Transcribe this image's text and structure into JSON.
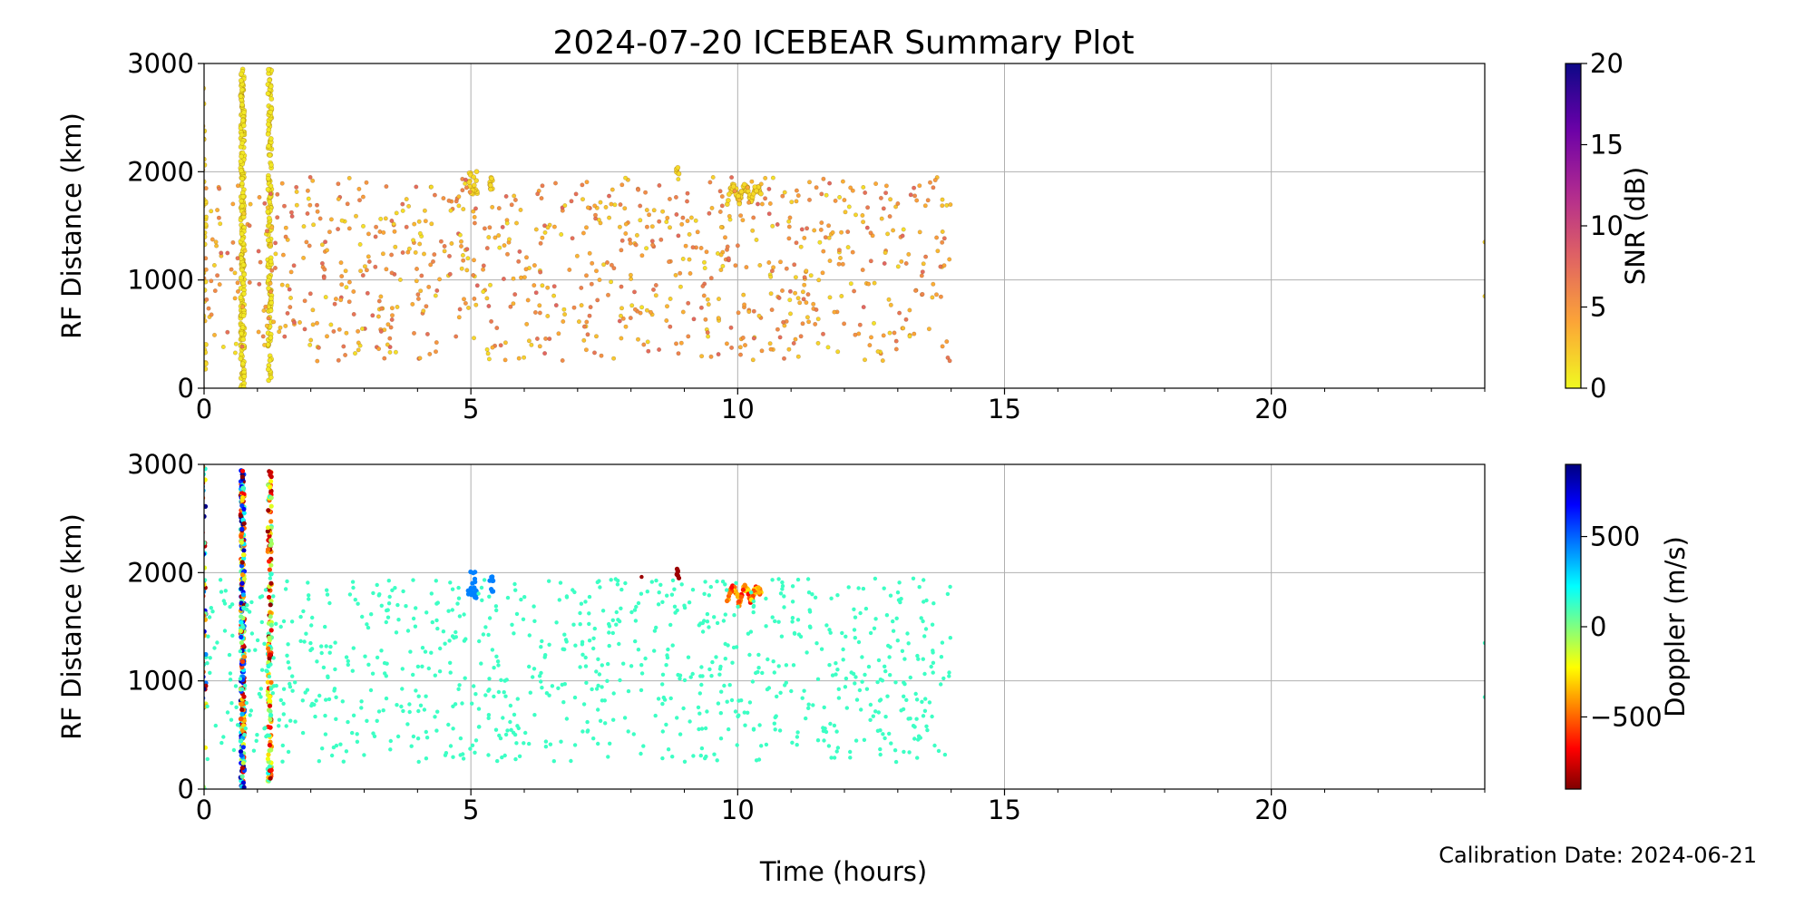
{
  "title": "2024-07-20 ICEBEAR Summary Plot",
  "xlabel": "Time (hours)",
  "calibration_note": "Calibration Date: 2024-06-21",
  "chart_data": [
    {
      "type": "scatter",
      "panel": "top",
      "xlabel": "",
      "ylabel": "RF Distance (km)",
      "xlim": [
        0,
        24
      ],
      "ylim": [
        0,
        3000
      ],
      "x_ticks": [
        0,
        5,
        10,
        15,
        20
      ],
      "x_tick_labels": [
        "0",
        "5",
        "10",
        "15",
        "20"
      ],
      "y_ticks": [
        0,
        1000,
        2000,
        3000
      ],
      "y_tick_labels": [
        "0",
        "1000",
        "2000",
        "3000"
      ],
      "grid": true,
      "color_variable": "SNR",
      "colorbar": {
        "label": "SNR (dB)",
        "min": 0,
        "max": 20,
        "ticks": [
          0,
          5,
          10,
          15,
          20
        ],
        "tick_labels": [
          "0",
          "5",
          "10",
          "15",
          "20"
        ],
        "colormap": "plasma_r",
        "colors": [
          "#f0f921",
          "#fca636",
          "#e16462",
          "#b12a90",
          "#6a00a8",
          "#0d0887"
        ]
      },
      "features": [
        {
          "kind": "band",
          "x": 0.0,
          "y_range": [
            0,
            3000
          ],
          "value": 1.5,
          "approx_points": 40
        },
        {
          "kind": "band",
          "x": 0.72,
          "y_range": [
            0,
            2950
          ],
          "value": 0.8,
          "approx_points": 260
        },
        {
          "kind": "band",
          "x": 1.23,
          "y_range": [
            50,
            2950
          ],
          "value": 0.8,
          "approx_points": 160
        },
        {
          "kind": "streak",
          "x_range": [
            4.95,
            5.12
          ],
          "y_range": [
            1720,
            2020
          ],
          "value": 1.5,
          "approx_points": 18
        },
        {
          "kind": "streak",
          "x_range": [
            5.35,
            5.42
          ],
          "y_range": [
            1800,
            1970
          ],
          "value": 1.5,
          "approx_points": 10
        },
        {
          "kind": "streak",
          "x_range": [
            8.85,
            8.9
          ],
          "y_range": [
            1930,
            2040
          ],
          "value": 1.5,
          "approx_points": 6
        },
        {
          "kind": "arc",
          "x_range": [
            9.8,
            10.45
          ],
          "y_range": [
            1650,
            1880
          ],
          "value": 1.5,
          "approx_points": 80
        },
        {
          "kind": "scatter",
          "x_range": [
            0,
            14
          ],
          "y_range": [
            250,
            1950
          ],
          "value_range": [
            1,
            8
          ],
          "approx_points": 900
        },
        {
          "kind": "point",
          "x": 24.0,
          "y": 1350,
          "value": 1.5
        },
        {
          "kind": "point",
          "x": 24.0,
          "y": 850,
          "value": 1.5
        }
      ]
    },
    {
      "type": "scatter",
      "panel": "bottom",
      "xlabel": "Time (hours)",
      "ylabel": "RF Distance (km)",
      "xlim": [
        0,
        24
      ],
      "ylim": [
        0,
        3000
      ],
      "x_ticks": [
        0,
        5,
        10,
        15,
        20
      ],
      "x_tick_labels": [
        "0",
        "5",
        "10",
        "15",
        "20"
      ],
      "y_ticks": [
        0,
        1000,
        2000,
        3000
      ],
      "y_tick_labels": [
        "0",
        "1000",
        "2000",
        "3000"
      ],
      "grid": true,
      "color_variable": "Doppler",
      "colorbar": {
        "label": "Doppler (m/s)",
        "min": -900,
        "max": 900,
        "ticks": [
          -500,
          0,
          500
        ],
        "tick_labels": [
          "−500",
          "0",
          "500"
        ],
        "colormap": "jet_r",
        "colors": [
          "#800000",
          "#ff0000",
          "#ff8000",
          "#ffff00",
          "#80ff80",
          "#00ffff",
          "#0080ff",
          "#0000ff",
          "#000080"
        ]
      },
      "features": [
        {
          "kind": "band",
          "x": 0.0,
          "y_range": [
            0,
            3000
          ],
          "value_range": [
            -900,
            900
          ],
          "approx_points": 60
        },
        {
          "kind": "band",
          "x": 0.72,
          "y_range": [
            0,
            2950
          ],
          "value_range": [
            -900,
            900
          ],
          "approx_points": 320
        },
        {
          "kind": "band",
          "x": 1.23,
          "y_range": [
            50,
            2950
          ],
          "value_range": [
            -900,
            200
          ],
          "approx_points": 160
        },
        {
          "kind": "streak",
          "x_range": [
            4.95,
            5.12
          ],
          "y_range": [
            1720,
            2020
          ],
          "value": 450,
          "approx_points": 18
        },
        {
          "kind": "streak",
          "x_range": [
            5.35,
            5.42
          ],
          "y_range": [
            1800,
            1970
          ],
          "value": 450,
          "approx_points": 10
        },
        {
          "kind": "streak",
          "x_range": [
            8.85,
            8.9
          ],
          "y_range": [
            1930,
            2040
          ],
          "value": -850,
          "approx_points": 6
        },
        {
          "kind": "point",
          "x": 8.2,
          "y": 1960,
          "value": -850
        },
        {
          "kind": "arc",
          "x_range": [
            9.8,
            10.45
          ],
          "y_range": [
            1650,
            1880
          ],
          "value_range": [
            -700,
            -250
          ],
          "approx_points": 80
        },
        {
          "kind": "scatter",
          "x_range": [
            0,
            14
          ],
          "y_range": [
            250,
            1950
          ],
          "value": 120,
          "approx_points": 900
        },
        {
          "kind": "point",
          "x": 24.0,
          "y": 1350,
          "value": 120
        },
        {
          "kind": "point",
          "x": 24.0,
          "y": 850,
          "value": 120
        }
      ]
    }
  ]
}
